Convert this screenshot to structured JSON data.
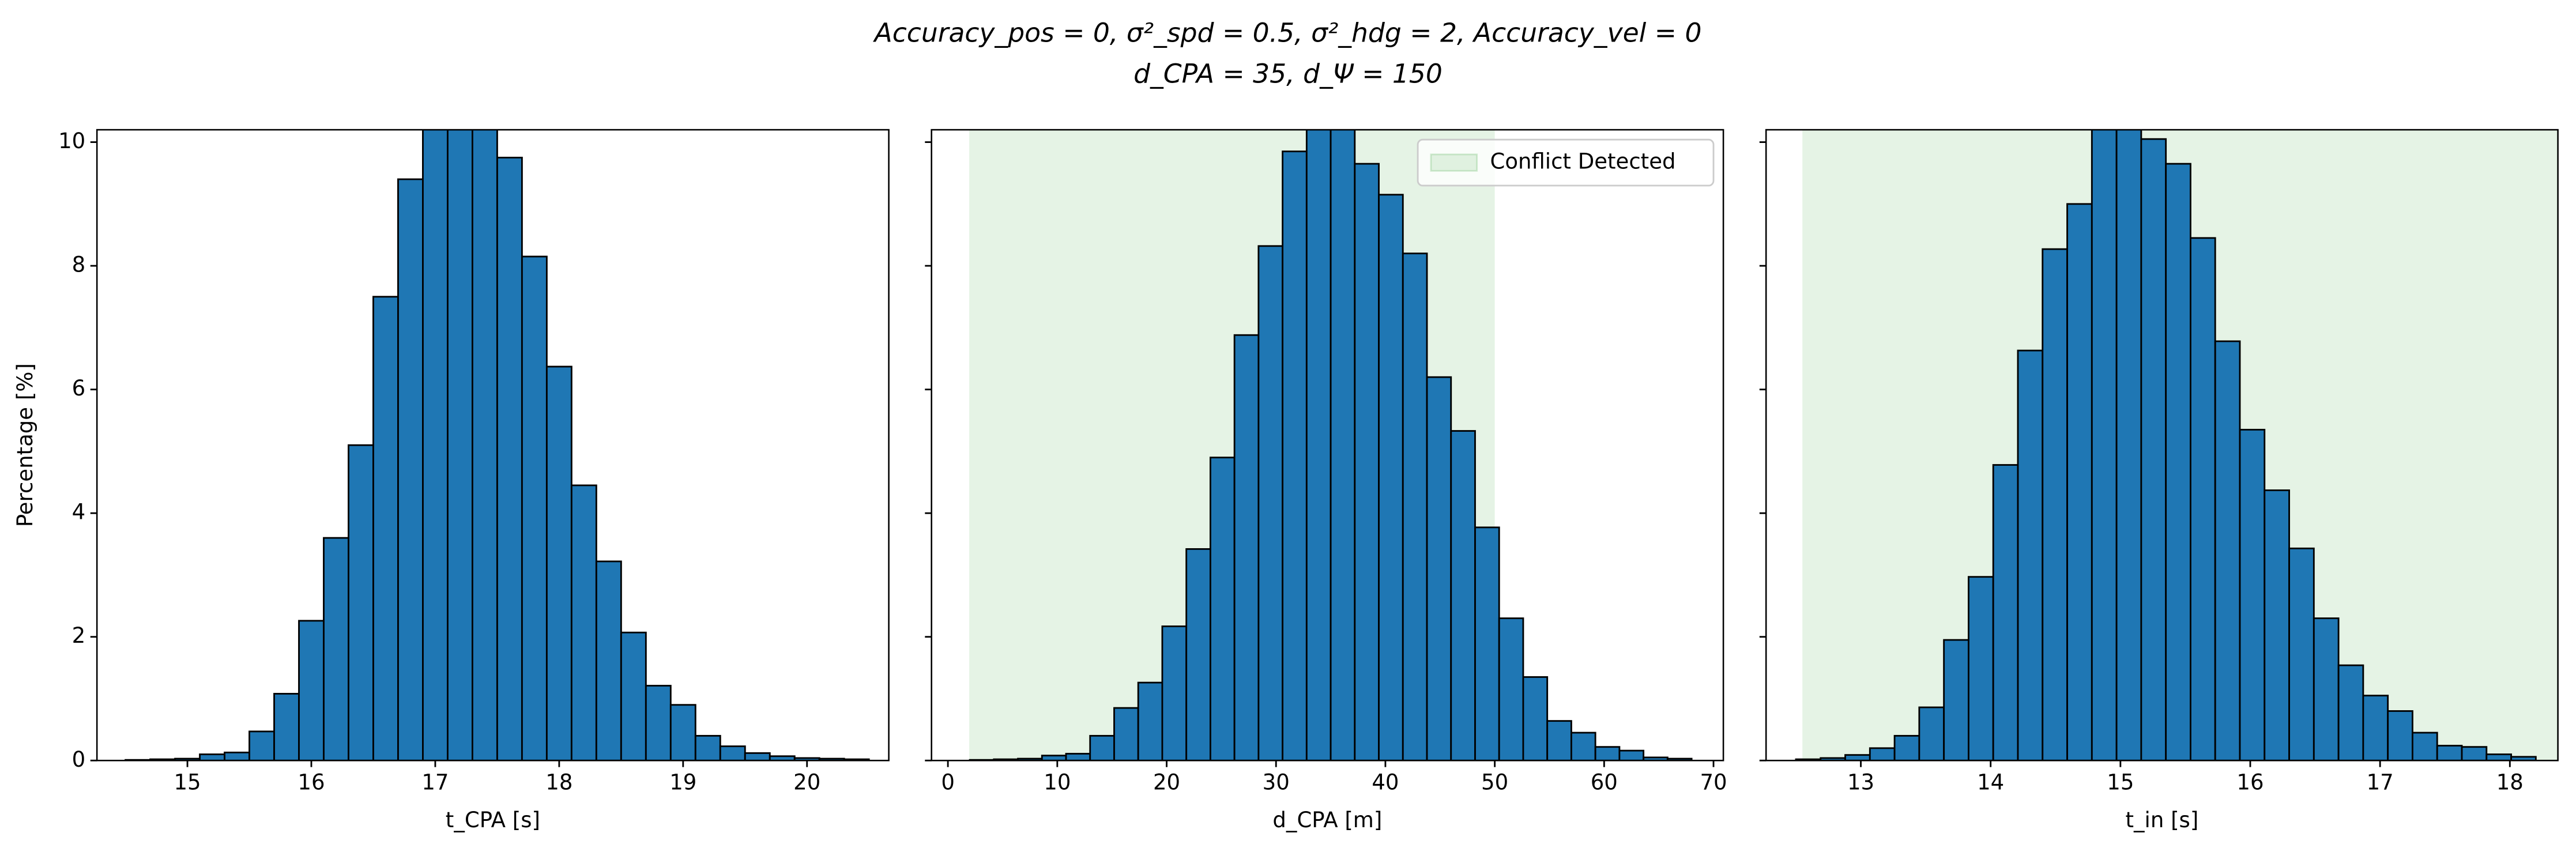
{
  "suptitle": [
    "Accuracy_pos = 0, σ²_spd = 0.5, σ²_hdg = 2, Accuracy_vel = 0",
    "d_CPA = 35, d_Ψ = 150"
  ],
  "chart_data": [
    {
      "type": "histogram",
      "color": "#1f77b4",
      "xlabel": "t_CPA [s]",
      "ylabel": "Percentage [%]",
      "bins": [
        14.5,
        14.7,
        14.9,
        15.1,
        15.3,
        15.5,
        15.7,
        15.9,
        16.1,
        16.3,
        16.5,
        16.7,
        16.9,
        17.1,
        17.3,
        17.5,
        17.7,
        17.9,
        18.1,
        18.3,
        18.5,
        18.7,
        18.9,
        19.1,
        19.3,
        19.5,
        19.7,
        19.9,
        20.1,
        20.3,
        20.5
      ],
      "values": [
        0.01,
        0.02,
        0.03,
        0.1,
        0.13,
        0.47,
        1.08,
        2.26,
        3.6,
        5.1,
        7.5,
        9.4,
        10.5,
        11.0,
        10.4,
        9.75,
        8.15,
        6.37,
        4.45,
        3.22,
        2.07,
        1.21,
        0.9,
        0.4,
        0.23,
        0.12,
        0.07,
        0.04,
        0.03,
        0.02
      ],
      "xlim": [
        14.27,
        20.66
      ],
      "xticks": [
        15,
        16,
        17,
        18,
        19,
        20
      ],
      "ylim": [
        0,
        10.2
      ],
      "yticks": [
        0,
        2,
        4,
        6,
        8,
        10
      ],
      "ytick_labels": true
    },
    {
      "type": "histogram",
      "color": "#1f77b4",
      "xlabel": "d_CPA [m]",
      "shade": {
        "range": [
          1.95,
          50
        ],
        "name": "Conflict Detected",
        "color": "#2ca02c"
      },
      "legend": "upper right",
      "bins": [
        2,
        4.2,
        6.4,
        8.6,
        10.8,
        13,
        15.2,
        17.4,
        19.6,
        21.8,
        24,
        26.2,
        28.4,
        30.6,
        32.8,
        35,
        37.2,
        39.4,
        41.6,
        43.8,
        46,
        48.2,
        50.4,
        52.6,
        54.8,
        57,
        59.2,
        61.4,
        63.6,
        65.8,
        68
      ],
      "values": [
        0.01,
        0.02,
        0.03,
        0.08,
        0.11,
        0.4,
        0.85,
        1.26,
        2.17,
        3.42,
        4.9,
        6.88,
        8.32,
        9.85,
        10.5,
        10.3,
        9.65,
        9.15,
        8.2,
        6.2,
        5.33,
        3.77,
        2.3,
        1.35,
        0.64,
        0.45,
        0.22,
        0.16,
        0.05,
        0.03
      ],
      "xlim": [
        -1.5,
        70.9
      ],
      "xticks": [
        0,
        10,
        20,
        30,
        40,
        50,
        60,
        70
      ],
      "ylim": [
        0,
        10.2
      ],
      "yticks": [
        0,
        2,
        4,
        6,
        8,
        10
      ],
      "ytick_labels": false
    },
    {
      "type": "histogram",
      "color": "#1f77b4",
      "xlabel": "t_in [s]",
      "shade": {
        "range": [
          12.55,
          18.4
        ],
        "color": "#2ca02c"
      },
      "bins": [
        12.5,
        12.69,
        12.88,
        13.07,
        13.26,
        13.45,
        13.64,
        13.83,
        14.02,
        14.21,
        14.4,
        14.59,
        14.78,
        14.97,
        15.16,
        15.35,
        15.54,
        15.73,
        15.92,
        16.11,
        16.3,
        16.49,
        16.68,
        16.87,
        17.06,
        17.25,
        17.44,
        17.63,
        17.82,
        18.01,
        18.2
      ],
      "values": [
        0.02,
        0.04,
        0.09,
        0.2,
        0.4,
        0.86,
        1.95,
        2.97,
        4.78,
        6.63,
        8.27,
        9.0,
        10.4,
        10.6,
        10.05,
        9.65,
        8.45,
        6.78,
        5.35,
        4.37,
        3.43,
        2.3,
        1.54,
        1.05,
        0.8,
        0.45,
        0.24,
        0.22,
        0.1,
        0.06
      ],
      "xlim": [
        12.27,
        18.37
      ],
      "xticks": [
        13,
        14,
        15,
        16,
        17,
        18
      ],
      "ylim": [
        0,
        10.2
      ],
      "yticks": [
        0,
        2,
        4,
        6,
        8,
        10
      ],
      "ytick_labels": false
    }
  ]
}
